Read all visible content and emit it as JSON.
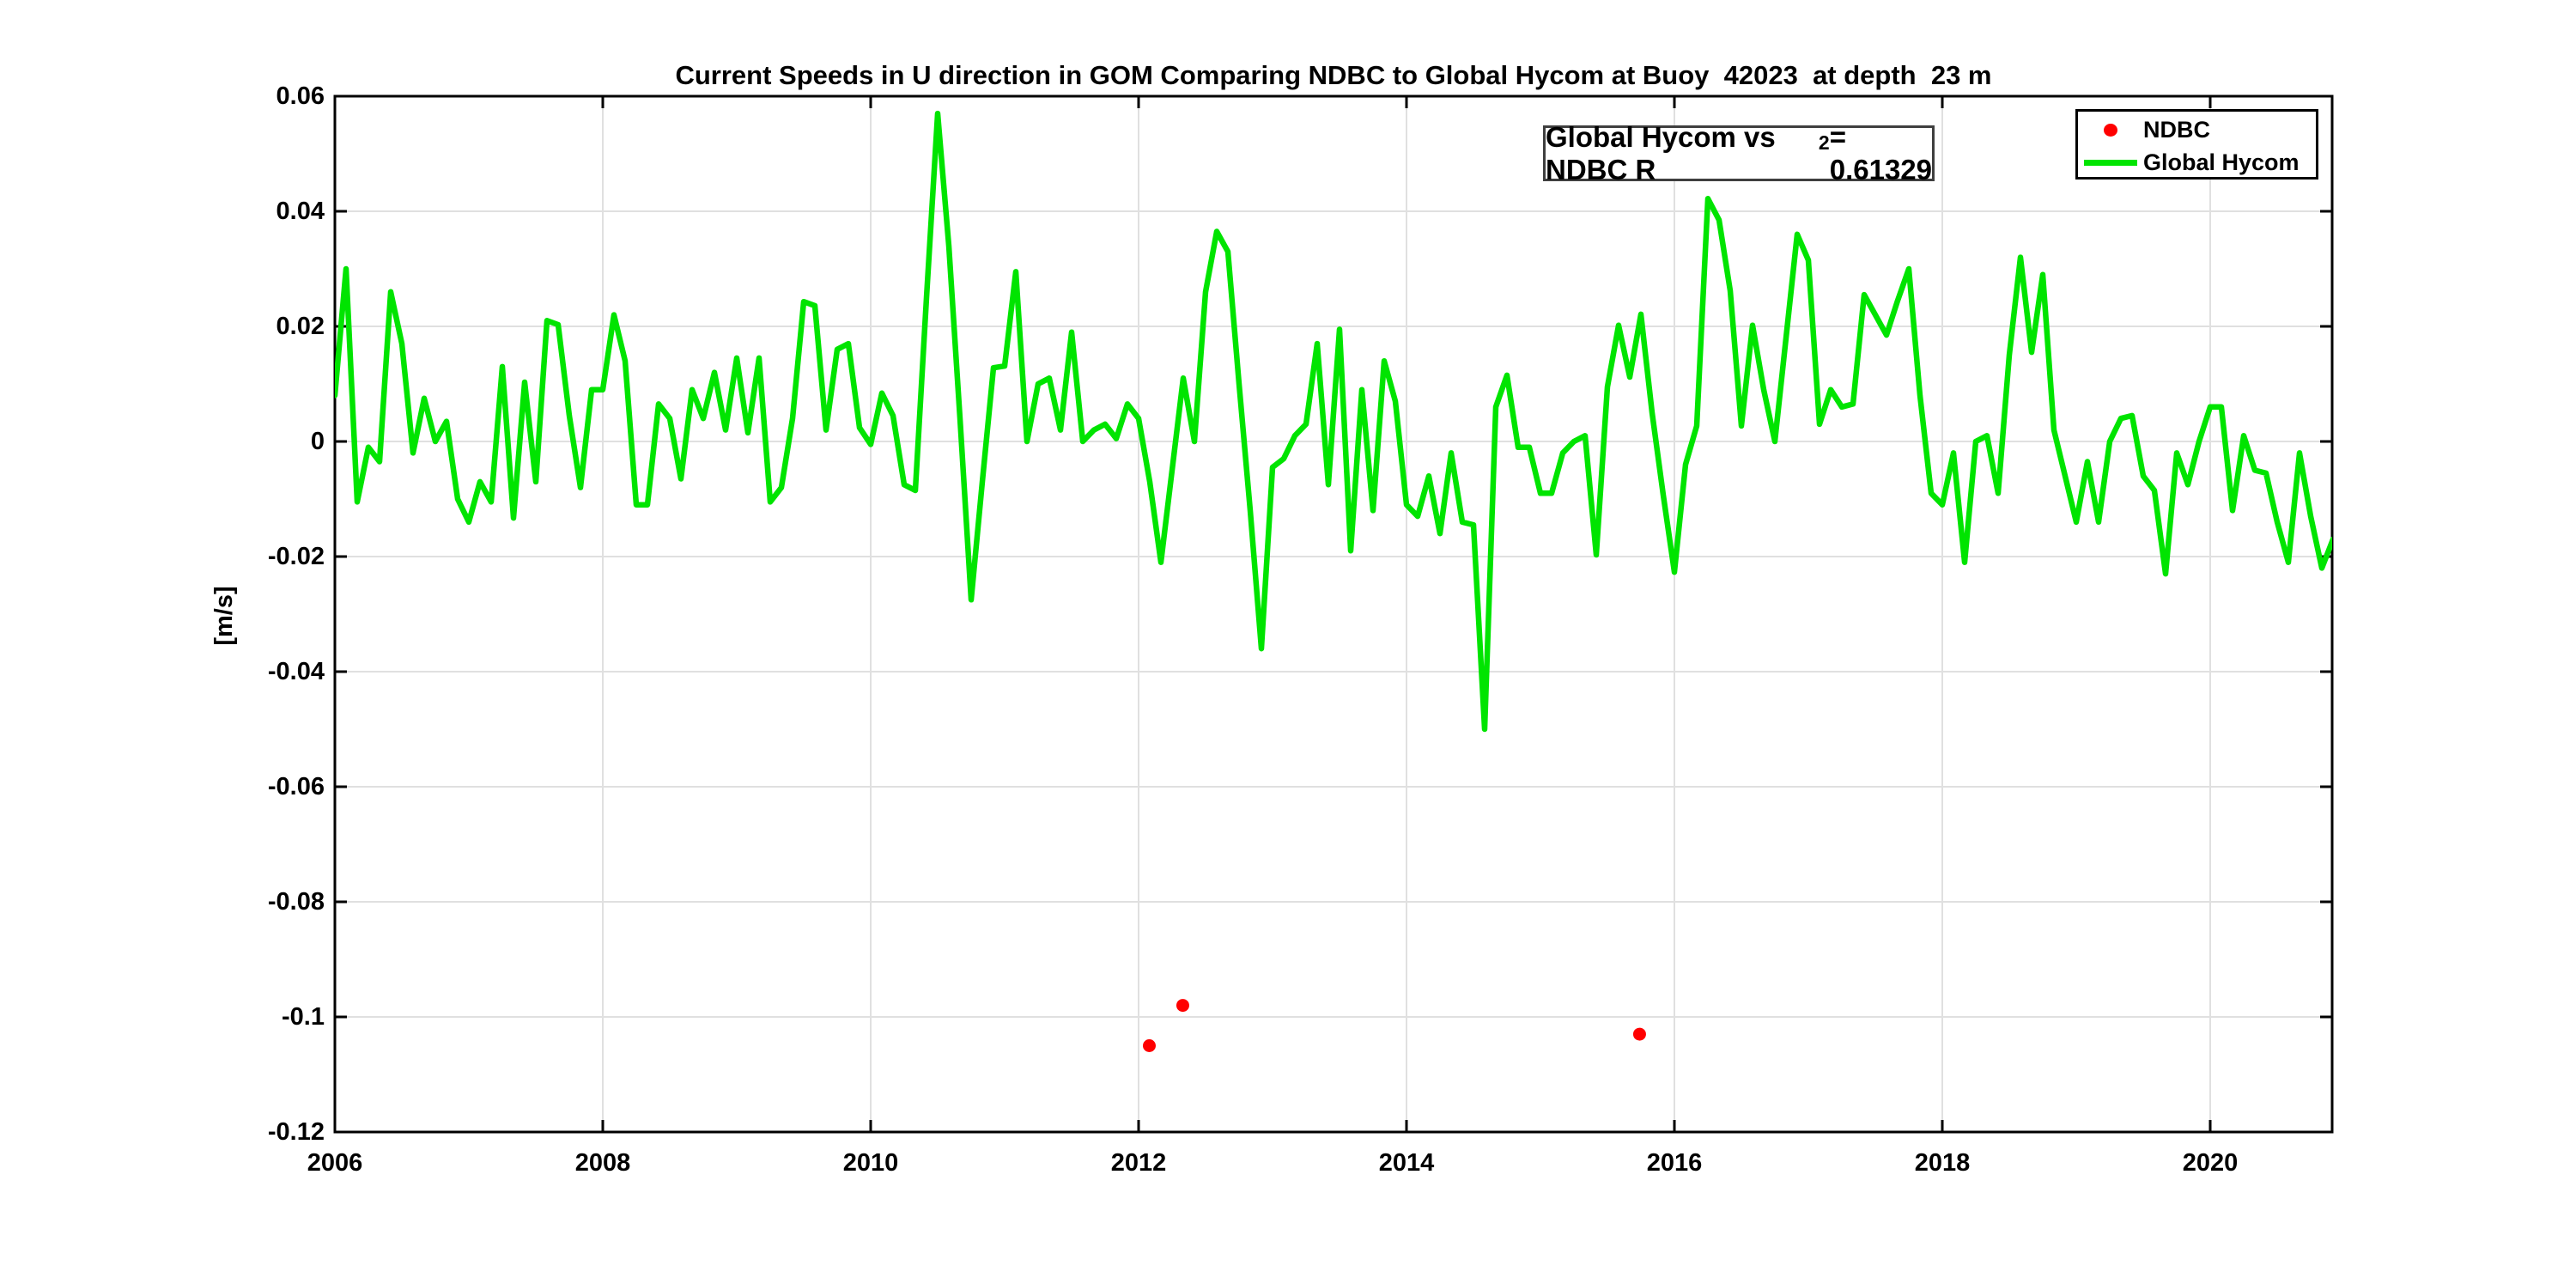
{
  "figure": {
    "title": "Current Speeds in U direction in GOM Comparing NDBC to Global Hycom at Buoy  42023  at depth  23 m",
    "ylabel": "[m/s]",
    "annotation": {
      "prefix": "Global Hycom vs NDBC R",
      "sup": "2",
      "suffix": " = 0.61329"
    },
    "legend": {
      "items": [
        {
          "label": "NDBC"
        },
        {
          "label": "Global Hycom"
        }
      ]
    }
  },
  "colors": {
    "line": "#00e400",
    "marker": "#ff0000",
    "grid": "#e0e0e0",
    "axis": "#000000",
    "annotation_border": "#3f3f3f",
    "background": "#ffffff"
  },
  "chart_data": {
    "type": "line",
    "title": "Current Speeds in U direction in GOM Comparing NDBC to Global Hycom at Buoy  42023  at depth  23 m",
    "xlabel": "",
    "ylabel": "[m/s]",
    "xlim": [
      2006,
      2020.92
    ],
    "ylim": [
      -0.12,
      0.06
    ],
    "grid": true,
    "legend_position": "top-right",
    "r_squared": 0.61329,
    "xtick_values": [
      2006,
      2008,
      2010,
      2012,
      2014,
      2016,
      2018,
      2020
    ],
    "xtick_labels": [
      "2006",
      "2008",
      "2010",
      "2012",
      "2014",
      "2016",
      "2018",
      "2020"
    ],
    "ytick_values": [
      0.06,
      0.04,
      0.02,
      0,
      -0.02,
      -0.04,
      -0.06,
      -0.08,
      -0.1,
      -0.12
    ],
    "ytick_labels": [
      "0.06",
      "0.04",
      "0.02",
      "0",
      "-0.02",
      "-0.04",
      "-0.06",
      "-0.08",
      "-0.1",
      "-0.12"
    ],
    "series": [
      {
        "name": "Global Hycom",
        "type": "line",
        "color": "#00e400",
        "x_start": 2006.0,
        "cadence": "monthly",
        "values": [
          0.008,
          0.03,
          -0.0105,
          -0.001,
          -0.0035,
          0.026,
          0.017,
          -0.002,
          0.0075,
          0.0,
          0.0035,
          -0.01,
          -0.014,
          -0.007,
          -0.0105,
          0.013,
          -0.0133,
          0.0103,
          -0.007,
          0.021,
          0.0203,
          0.0045,
          -0.008,
          0.009,
          0.009,
          0.022,
          0.014,
          -0.011,
          -0.011,
          0.0065,
          0.004,
          -0.0065,
          0.009,
          0.004,
          0.012,
          0.002,
          0.0145,
          0.0015,
          0.0145,
          -0.0105,
          -0.008,
          0.004,
          0.0243,
          0.0236,
          0.002,
          0.016,
          0.017,
          0.0024,
          -0.0005,
          0.0084,
          0.0045,
          -0.0075,
          -0.0085,
          0.025,
          0.057,
          0.034,
          0.004,
          -0.0275,
          -0.007,
          0.0128,
          0.0131,
          0.0295,
          0.0,
          0.01,
          0.011,
          0.002,
          0.019,
          0.0,
          0.002,
          0.003,
          0.0005,
          0.0065,
          0.004,
          -0.007,
          -0.021,
          -0.005,
          0.011,
          0.0,
          0.026,
          0.0365,
          0.033,
          0.01,
          -0.012,
          -0.036,
          -0.0045,
          -0.003,
          0.001,
          0.003,
          0.017,
          -0.0075,
          0.0195,
          -0.019,
          0.009,
          -0.012,
          0.014,
          0.007,
          -0.011,
          -0.013,
          -0.006,
          -0.016,
          -0.002,
          -0.014,
          -0.0145,
          -0.05,
          0.006,
          0.0115,
          -0.001,
          -0.001,
          -0.009,
          -0.009,
          -0.002,
          0.0,
          0.001,
          -0.0197,
          0.0095,
          0.0202,
          0.0112,
          0.0221,
          0.005,
          -0.0093,
          -0.0227,
          -0.004,
          0.0027,
          0.0422,
          0.0385,
          0.0262,
          0.0027,
          0.0202,
          0.009,
          0.0,
          0.018,
          0.036,
          0.0315,
          0.003,
          0.009,
          0.006,
          0.0065,
          0.0255,
          0.022,
          0.0185,
          0.0245,
          0.03,
          0.008,
          -0.009,
          -0.011,
          -0.002,
          -0.021,
          0.0,
          0.001,
          -0.009,
          0.015,
          0.032,
          0.0155,
          0.029,
          0.002,
          -0.006,
          -0.014,
          -0.0035,
          -0.014,
          0.0,
          0.004,
          0.0045,
          -0.006,
          -0.0085,
          -0.023,
          -0.002,
          -0.0075,
          0.0,
          0.006,
          0.006,
          -0.012,
          0.001,
          -0.005,
          -0.0055,
          -0.014,
          -0.021,
          -0.002,
          -0.013,
          -0.022,
          -0.017
        ]
      },
      {
        "name": "NDBC",
        "type": "scatter",
        "color": "#ff0000",
        "points": [
          [
            2012.08,
            -0.105
          ],
          [
            2012.33,
            -0.098
          ],
          [
            2015.74,
            -0.103
          ]
        ]
      }
    ]
  }
}
